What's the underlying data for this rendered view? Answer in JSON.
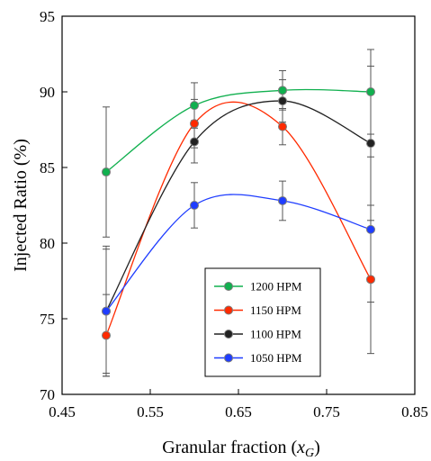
{
  "chart_data": {
    "type": "line",
    "title": "",
    "xlabel": "Granular fraction (",
    "xlabel_symbol": "x",
    "xlabel_subscript": "G",
    "xlabel_close": ")",
    "ylabel": "Injected Ratio (%)",
    "xlim": [
      0.45,
      0.85
    ],
    "ylim": [
      70,
      95
    ],
    "xticks": [
      "0.45",
      "0.55",
      "0.65",
      "0.75",
      "0.85"
    ],
    "yticks": [
      "70",
      "75",
      "80",
      "85",
      "90",
      "95"
    ],
    "x": [
      0.5,
      0.6,
      0.7,
      0.8
    ],
    "grid": false,
    "legend_position": "bottom-center",
    "series": [
      {
        "name": "1200 HPM",
        "color": "#11b04f",
        "values": [
          84.7,
          89.1,
          90.1,
          90.0
        ],
        "errors": [
          4.3,
          1.5,
          1.3,
          2.8
        ]
      },
      {
        "name": "1150 HPM",
        "color": "#ff2a00",
        "values": [
          73.9,
          87.9,
          87.7,
          77.6
        ],
        "errors": [
          2.7,
          1.6,
          1.2,
          4.9
        ]
      },
      {
        "name": "1100 HPM",
        "color": "#222222",
        "values": [
          75.5,
          86.7,
          89.4,
          86.6
        ],
        "errors": [
          4.3,
          1.4,
          1.4,
          5.1
        ]
      },
      {
        "name": "1050 HPM",
        "color": "#1f3dff",
        "values": [
          75.5,
          82.5,
          82.8,
          80.9
        ],
        "errors": [
          4.1,
          1.5,
          1.3,
          4.8
        ]
      }
    ]
  }
}
